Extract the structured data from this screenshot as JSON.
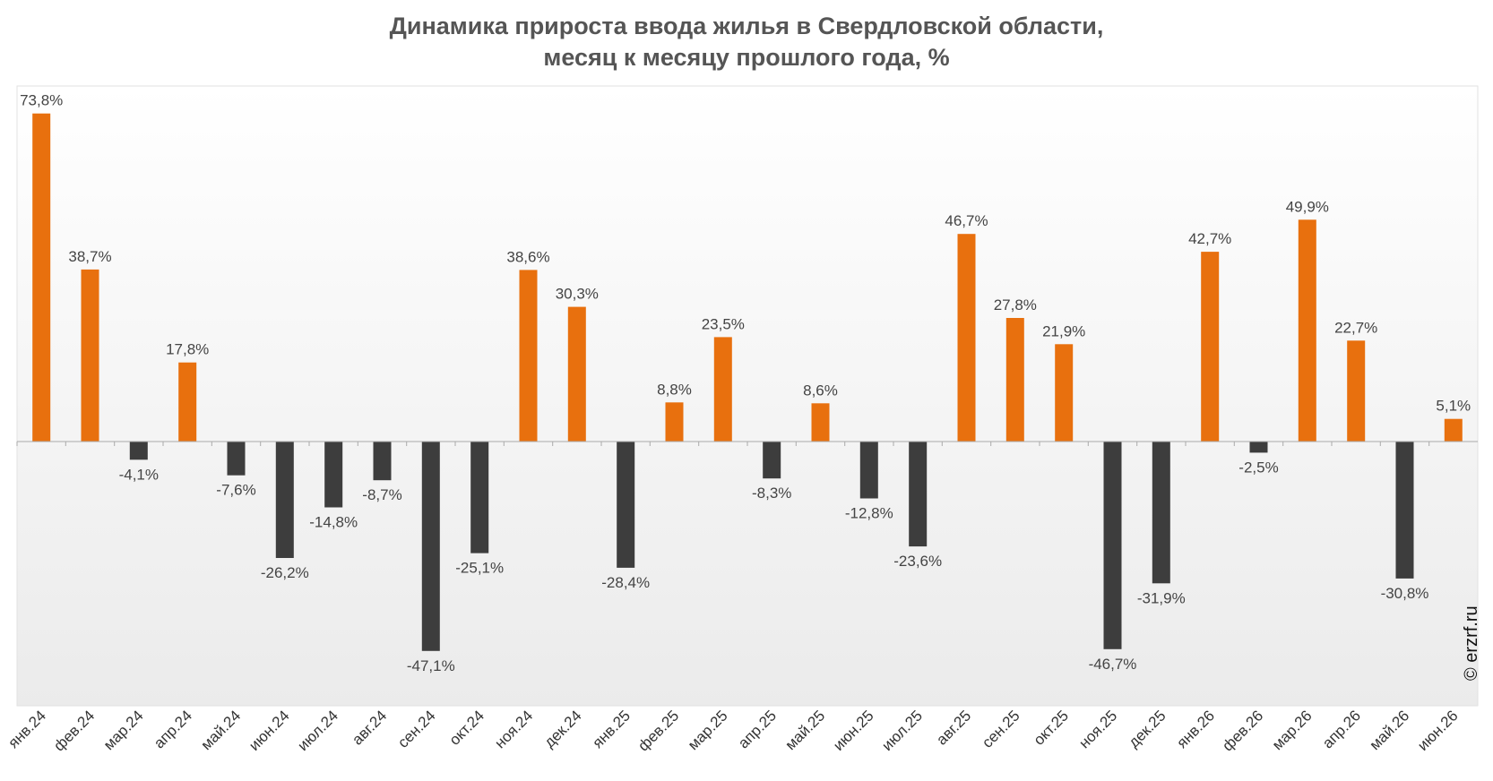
{
  "chart_data": {
    "type": "bar",
    "title_line1": "Динамика прироста ввода жилья в Свердловской области,",
    "title_line2": "месяц к месяцу прошлого года, %",
    "categories": [
      "янв.24",
      "фев.24",
      "мар.24",
      "апр.24",
      "май.24",
      "июн.24",
      "июл.24",
      "авг.24",
      "сен.24",
      "окт.24",
      "ноя.24",
      "дек.24",
      "янв.25",
      "фев.25",
      "мар.25",
      "апр.25",
      "май.25",
      "июн.25",
      "июл.25",
      "авг.25",
      "сен.25",
      "окт.25",
      "ноя.25",
      "дек.25",
      "янв.26",
      "фев.26",
      "мар.26",
      "апр.26",
      "май.26",
      "июн.26"
    ],
    "values": [
      73.8,
      38.7,
      -4.1,
      17.8,
      -7.6,
      -26.2,
      -14.8,
      -8.7,
      -47.1,
      -25.1,
      38.6,
      30.3,
      -28.4,
      8.8,
      23.5,
      -8.3,
      8.6,
      -12.8,
      -23.6,
      46.7,
      27.8,
      21.9,
      -46.7,
      -31.9,
      42.7,
      -2.5,
      49.9,
      22.7,
      -30.8,
      5.1
    ],
    "value_labels": [
      "73,8%",
      "38,7%",
      "-4,1%",
      "17,8%",
      "-7,6%",
      "-26,2%",
      "-14,8%",
      "-8,7%",
      "-47,1%",
      "-25,1%",
      "38,6%",
      "30,3%",
      "-28,4%",
      "8,8%",
      "23,5%",
      "-8,3%",
      "8,6%",
      "-12,8%",
      "-23,6%",
      "46,7%",
      "27,8%",
      "21,9%",
      "-46,7%",
      "-31,9%",
      "42,7%",
      "-2,5%",
      "49,9%",
      "22,7%",
      "-30,8%",
      "5,1%"
    ],
    "ylim": [
      -60,
      80
    ],
    "grid": false,
    "legend": "none",
    "colors": {
      "positive": "#E8700E",
      "negative": "#3D3D3D",
      "title": "#555555",
      "axis": "#AAAAAA"
    },
    "credit": "© erzrf.ru"
  }
}
